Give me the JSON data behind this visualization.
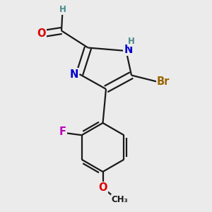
{
  "bg_color": "#ebebeb",
  "bond_color": "#1a1a1a",
  "bond_width": 1.6,
  "dbo": 0.016,
  "atom_colors": {
    "C": "#1a1a1a",
    "H": "#4a8a8a",
    "O": "#dd0000",
    "N": "#0000cc",
    "Br": "#996600",
    "F": "#bb00bb"
  },
  "fs": 10.5,
  "sfs": 8.5
}
